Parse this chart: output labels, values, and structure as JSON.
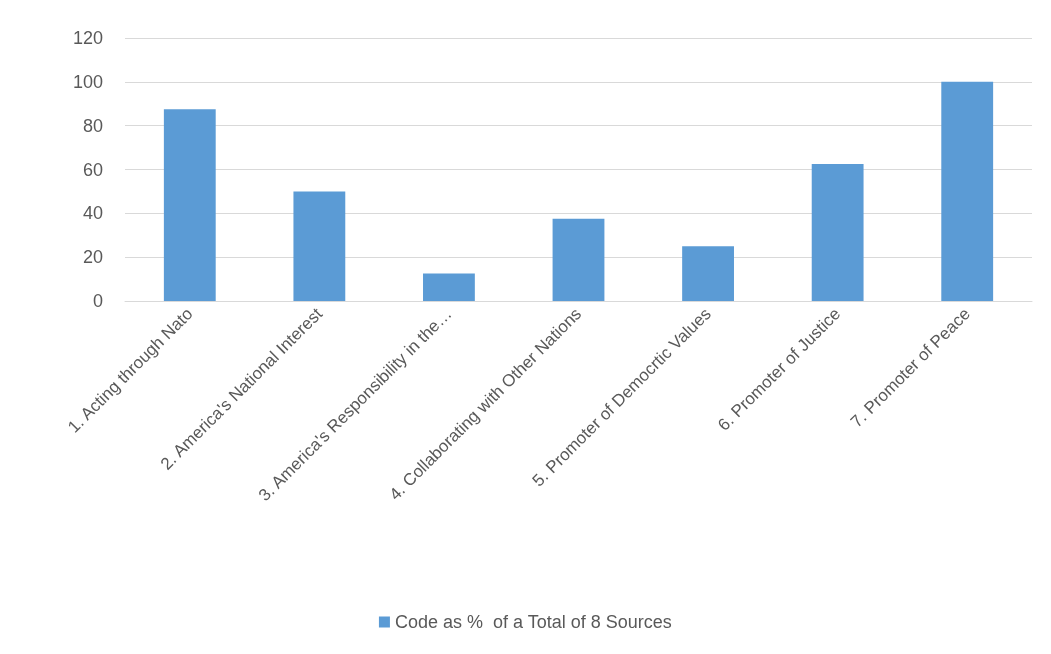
{
  "chart_data": {
    "type": "bar",
    "categories": [
      "1. Acting through Nato",
      "2. America's National Interest",
      "3. America's Responsibility in the…",
      "4. Collaborating with Other Nations",
      "5. Promoter of Democrtic Values",
      "6. Promoter of Justice",
      "7. Promoter of Peace"
    ],
    "series": [
      {
        "name": "Code as %  of a Total of 8 Sources",
        "color": "#5b9bd5",
        "values": [
          87.5,
          50,
          12.5,
          37.5,
          25,
          62.5,
          100
        ]
      }
    ],
    "ylim": [
      0,
      120
    ],
    "yticks": [
      0,
      20,
      40,
      60,
      80,
      100,
      120
    ],
    "grid": "y",
    "legend": "bottom"
  }
}
